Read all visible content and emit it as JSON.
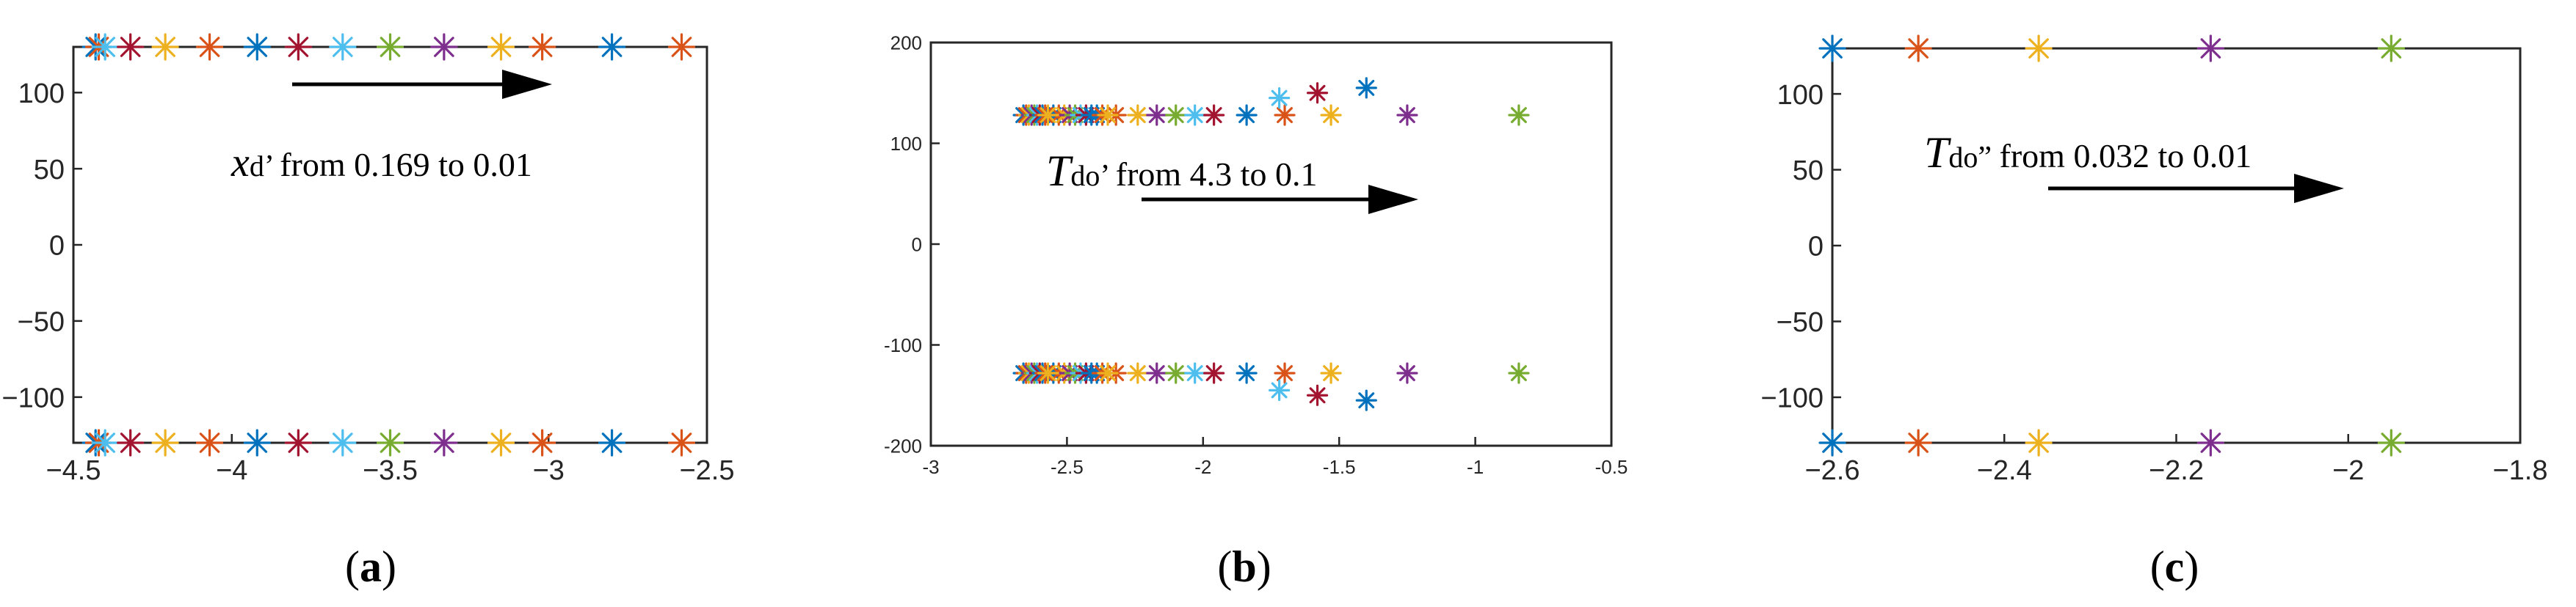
{
  "chart_data": [
    {
      "type": "scatter",
      "panel_label": "a",
      "annotation": {
        "symbol": "x",
        "subscript": "d",
        "prime": "’",
        "text": "from 0.169 to 0.01"
      },
      "xlim": [
        -4.5,
        -2.5
      ],
      "ylim": [
        -130,
        130
      ],
      "xticks": [
        -4.5,
        -4,
        -3.5,
        -3,
        -2.5
      ],
      "xtick_labels": [
        "−4.5",
        "−4",
        "−3.5",
        "−3",
        "−2.5"
      ],
      "yticks": [
        100,
        50,
        0,
        -50,
        -100
      ],
      "ytick_labels": [
        "100",
        "50",
        "0",
        "−50",
        "−100"
      ],
      "grid": false,
      "series": [
        {
          "color": "#0072BD",
          "points": [
            [
              -4.43,
              130
            ],
            [
              -4.43,
              -130
            ],
            [
              -3.92,
              130
            ],
            [
              -3.92,
              -130
            ],
            [
              -2.8,
              130
            ],
            [
              -2.8,
              -130
            ]
          ]
        },
        {
          "color": "#D95319",
          "points": [
            [
              -4.42,
              130
            ],
            [
              -4.42,
              -130
            ],
            [
              -4.07,
              130
            ],
            [
              -4.07,
              -130
            ],
            [
              -3.02,
              130
            ],
            [
              -3.02,
              -130
            ],
            [
              -2.58,
              130
            ],
            [
              -2.58,
              -130
            ]
          ]
        },
        {
          "color": "#4DBEEE",
          "points": [
            [
              -4.4,
              130
            ],
            [
              -4.4,
              -130
            ],
            [
              -3.65,
              130
            ],
            [
              -3.65,
              -130
            ]
          ]
        },
        {
          "color": "#A2142F",
          "points": [
            [
              -4.32,
              130
            ],
            [
              -4.32,
              -130
            ],
            [
              -3.79,
              130
            ],
            [
              -3.79,
              -130
            ]
          ]
        },
        {
          "color": "#EDB120",
          "points": [
            [
              -4.21,
              130
            ],
            [
              -4.21,
              -130
            ],
            [
              -3.15,
              130
            ],
            [
              -3.15,
              -130
            ]
          ]
        },
        {
          "color": "#77AC30",
          "points": [
            [
              -3.5,
              130
            ],
            [
              -3.5,
              -130
            ]
          ]
        },
        {
          "color": "#7E2F8E",
          "points": [
            [
              -3.33,
              130
            ],
            [
              -3.33,
              -130
            ]
          ]
        }
      ]
    },
    {
      "type": "scatter",
      "panel_label": "b",
      "annotation": {
        "symbol": "T",
        "subscript": "do",
        "prime": "’",
        "text": "from 4.3 to 0.1"
      },
      "xlim": [
        -3,
        -0.5
      ],
      "ylim": [
        -200,
        200
      ],
      "xticks": [
        -3,
        -2.5,
        -2,
        -1.5,
        -1,
        -0.5
      ],
      "xtick_labels": [
        "-3",
        "-2.5",
        "-2",
        "-1.5",
        "-1",
        "-0.5"
      ],
      "yticks": [
        200,
        100,
        0,
        -100,
        -200
      ],
      "ytick_labels": [
        "200",
        "100",
        "0",
        "-100",
        "-200"
      ],
      "grid": false,
      "series": [
        {
          "color": "#0072BD",
          "points": [
            [
              -2.66,
              128
            ],
            [
              -2.66,
              -128
            ],
            [
              -2.55,
              128
            ],
            [
              -2.55,
              -128
            ],
            [
              -2.39,
              128
            ],
            [
              -2.39,
              -128
            ],
            [
              -1.84,
              128
            ],
            [
              -1.84,
              -128
            ],
            [
              -1.4,
              155
            ],
            [
              -1.4,
              -155
            ]
          ]
        },
        {
          "color": "#D95319",
          "points": [
            [
              -2.65,
              128
            ],
            [
              -2.65,
              -128
            ],
            [
              -2.53,
              128
            ],
            [
              -2.53,
              -128
            ],
            [
              -2.32,
              128
            ],
            [
              -2.32,
              -128
            ],
            [
              -1.7,
              128
            ],
            [
              -1.7,
              -128
            ]
          ]
        },
        {
          "color": "#EDB120",
          "points": [
            [
              -2.64,
              128
            ],
            [
              -2.64,
              -128
            ],
            [
              -2.51,
              128
            ],
            [
              -2.51,
              -128
            ],
            [
              -2.24,
              128
            ],
            [
              -2.24,
              -128
            ],
            [
              -1.53,
              128
            ],
            [
              -1.53,
              -128
            ]
          ]
        },
        {
          "color": "#7E2F8E",
          "points": [
            [
              -2.63,
              128
            ],
            [
              -2.63,
              -128
            ],
            [
              -2.49,
              128
            ],
            [
              -2.49,
              -128
            ],
            [
              -2.17,
              128
            ],
            [
              -2.17,
              -128
            ],
            [
              -1.25,
              128
            ],
            [
              -1.25,
              -128
            ]
          ]
        },
        {
          "color": "#77AC30",
          "points": [
            [
              -2.62,
              128
            ],
            [
              -2.62,
              -128
            ],
            [
              -2.47,
              128
            ],
            [
              -2.47,
              -128
            ],
            [
              -2.1,
              128
            ],
            [
              -2.1,
              -128
            ],
            [
              -0.84,
              128
            ],
            [
              -0.84,
              -128
            ]
          ]
        },
        {
          "color": "#4DBEEE",
          "points": [
            [
              -2.61,
              128
            ],
            [
              -2.61,
              -128
            ],
            [
              -2.45,
              128
            ],
            [
              -2.45,
              -128
            ],
            [
              -2.03,
              128
            ],
            [
              -2.03,
              -128
            ],
            [
              -1.72,
              145
            ],
            [
              -1.72,
              -145
            ]
          ]
        },
        {
          "color": "#A2142F",
          "points": [
            [
              -2.6,
              128
            ],
            [
              -2.6,
              -128
            ],
            [
              -2.43,
              128
            ],
            [
              -2.43,
              -128
            ],
            [
              -1.96,
              128
            ],
            [
              -1.96,
              -128
            ],
            [
              -1.58,
              150
            ],
            [
              -1.58,
              -150
            ]
          ]
        },
        {
          "color": "#0072BD",
          "points": [
            [
              -2.59,
              128
            ],
            [
              -2.59,
              -128
            ],
            [
              -2.41,
              128
            ],
            [
              -2.41,
              -128
            ]
          ]
        },
        {
          "color": "#D95319",
          "points": [
            [
              -2.58,
              128
            ],
            [
              -2.58,
              -128
            ],
            [
              -2.37,
              128
            ],
            [
              -2.37,
              -128
            ]
          ]
        },
        {
          "color": "#EDB120",
          "points": [
            [
              -2.57,
              128
            ],
            [
              -2.57,
              -128
            ],
            [
              -2.35,
              128
            ],
            [
              -2.35,
              -128
            ]
          ]
        }
      ]
    },
    {
      "type": "scatter",
      "panel_label": "c",
      "annotation": {
        "symbol": "T",
        "subscript": "do",
        "prime": "”",
        "text": "from 0.032 to 0.01"
      },
      "xlim": [
        -2.6,
        -1.8
      ],
      "ylim": [
        -130,
        130
      ],
      "xticks": [
        -2.6,
        -2.4,
        -2.2,
        -2,
        -1.8
      ],
      "xtick_labels": [
        "−2.6",
        "−2.4",
        "−2.2",
        "−2",
        "−1.8"
      ],
      "yticks": [
        100,
        50,
        0,
        -50,
        -100
      ],
      "ytick_labels": [
        "100",
        "50",
        "0",
        "−50",
        "−100"
      ],
      "grid": false,
      "series": [
        {
          "color": "#0072BD",
          "points": [
            [
              -2.6,
              130
            ],
            [
              -2.6,
              -130
            ]
          ]
        },
        {
          "color": "#D95319",
          "points": [
            [
              -2.5,
              130
            ],
            [
              -2.5,
              -130
            ]
          ]
        },
        {
          "color": "#EDB120",
          "points": [
            [
              -2.36,
              130
            ],
            [
              -2.36,
              -130
            ]
          ]
        },
        {
          "color": "#7E2F8E",
          "points": [
            [
              -2.16,
              130
            ],
            [
              -2.16,
              -130
            ]
          ]
        },
        {
          "color": "#77AC30",
          "points": [
            [
              -1.95,
              130
            ],
            [
              -1.95,
              -130
            ]
          ]
        }
      ]
    }
  ]
}
